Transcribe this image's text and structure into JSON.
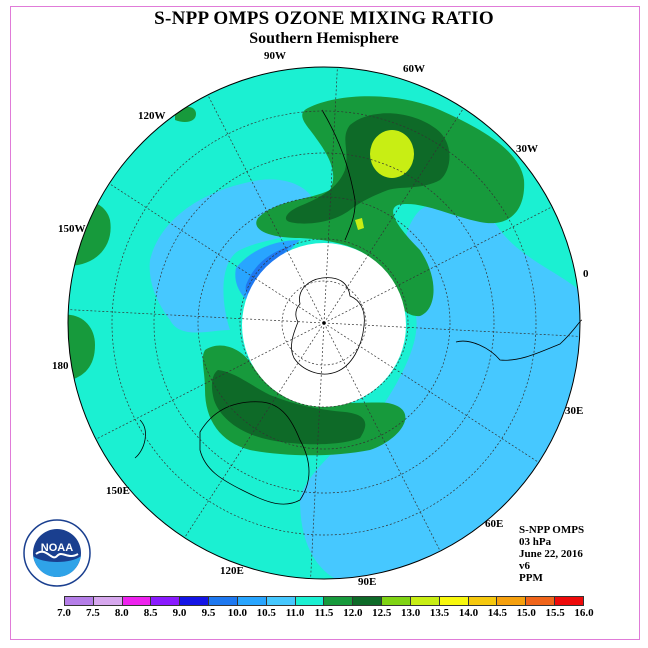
{
  "title": "S-NPP OMPS OZONE MIXING RATIO",
  "subtitle": "Southern Hemisphere",
  "longitude_labels": {
    "lon_90w": "90W",
    "lon_60w": "60W",
    "lon_30w": "30W",
    "lon_0": "0",
    "lon_30e": "30E",
    "lon_60e": "60E",
    "lon_90e": "90E",
    "lon_120e": "120E",
    "lon_150e": "150E",
    "lon_180": "180",
    "lon_150w": "150W",
    "lon_120w": "120W"
  },
  "info": {
    "instrument": "S-NPP OMPS",
    "level": "03 hPa",
    "date": "June 22, 2016",
    "version": "v6",
    "units": "PPM"
  },
  "colorbar": {
    "ticks": [
      "7.0",
      "7.5",
      "8.0",
      "8.5",
      "9.0",
      "9.5",
      "10.0",
      "10.5",
      "11.0",
      "11.5",
      "12.0",
      "12.5",
      "13.0",
      "13.5",
      "14.0",
      "14.5",
      "15.0",
      "15.5",
      "16.0"
    ],
    "colors": [
      "#b57ee8",
      "#d7a8ee",
      "#ee22ee",
      "#8a1aff",
      "#1414e6",
      "#1e78f0",
      "#28a5ff",
      "#46c8ff",
      "#1bf0d2",
      "#179a3c",
      "#0e6a28",
      "#7fd313",
      "#c8ee14",
      "#f8f80e",
      "#f5c80e",
      "#f5a00e",
      "#f0641a",
      "#ee0a0a",
      "#8c4a2a"
    ]
  },
  "logo": {
    "text": "NOAA"
  }
}
